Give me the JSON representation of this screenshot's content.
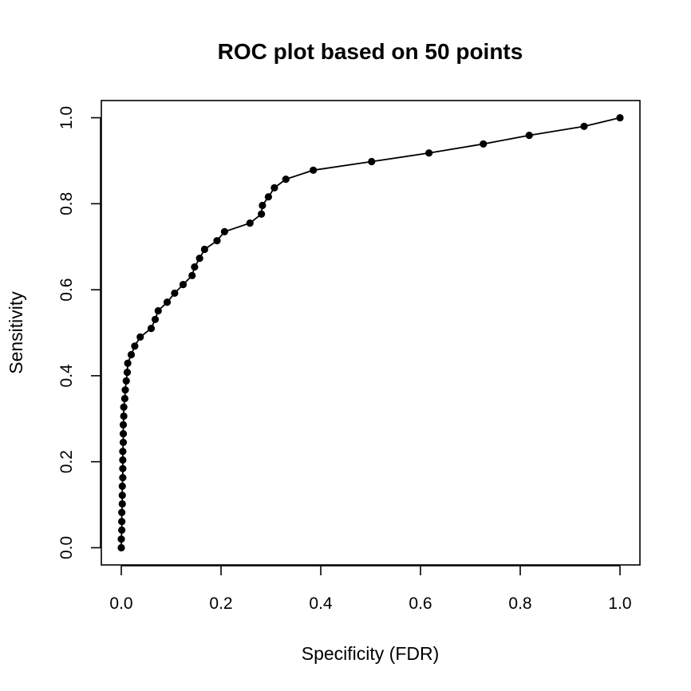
{
  "chart_data": {
    "type": "line",
    "title": "ROC plot based on 50 points",
    "xlabel": "Specificity (FDR)",
    "ylabel": "Sensitivity",
    "xlim": [
      -0.04,
      1.04
    ],
    "ylim": [
      -0.04,
      1.04
    ],
    "xticks": [
      "0.0",
      "0.2",
      "0.4",
      "0.6",
      "0.8",
      "1.0"
    ],
    "yticks": [
      "0.0",
      "0.2",
      "0.4",
      "0.6",
      "0.8",
      "1.0"
    ],
    "grid": false,
    "legend": "none",
    "colors": {
      "line": "#000000",
      "points": "#000000"
    },
    "points": [
      [
        0.0,
        0.0
      ],
      [
        0.0,
        0.02
      ],
      [
        0.001,
        0.041
      ],
      [
        0.001,
        0.061
      ],
      [
        0.001,
        0.082
      ],
      [
        0.002,
        0.102
      ],
      [
        0.002,
        0.122
      ],
      [
        0.002,
        0.143
      ],
      [
        0.003,
        0.163
      ],
      [
        0.003,
        0.184
      ],
      [
        0.003,
        0.204
      ],
      [
        0.003,
        0.224
      ],
      [
        0.004,
        0.245
      ],
      [
        0.004,
        0.265
      ],
      [
        0.004,
        0.286
      ],
      [
        0.005,
        0.306
      ],
      [
        0.005,
        0.327
      ],
      [
        0.007,
        0.347
      ],
      [
        0.008,
        0.367
      ],
      [
        0.01,
        0.388
      ],
      [
        0.012,
        0.408
      ],
      [
        0.013,
        0.429
      ],
      [
        0.02,
        0.449
      ],
      [
        0.027,
        0.469
      ],
      [
        0.038,
        0.49
      ],
      [
        0.06,
        0.51
      ],
      [
        0.068,
        0.531
      ],
      [
        0.074,
        0.551
      ],
      [
        0.092,
        0.571
      ],
      [
        0.107,
        0.592
      ],
      [
        0.124,
        0.612
      ],
      [
        0.142,
        0.633
      ],
      [
        0.147,
        0.653
      ],
      [
        0.157,
        0.673
      ],
      [
        0.167,
        0.694
      ],
      [
        0.192,
        0.714
      ],
      [
        0.207,
        0.735
      ],
      [
        0.258,
        0.755
      ],
      [
        0.281,
        0.776
      ],
      [
        0.283,
        0.796
      ],
      [
        0.295,
        0.816
      ],
      [
        0.307,
        0.837
      ],
      [
        0.33,
        0.857
      ],
      [
        0.385,
        0.878
      ],
      [
        0.502,
        0.898
      ],
      [
        0.617,
        0.918
      ],
      [
        0.726,
        0.939
      ],
      [
        0.818,
        0.959
      ],
      [
        0.928,
        0.98
      ],
      [
        1.0,
        1.0
      ]
    ]
  }
}
